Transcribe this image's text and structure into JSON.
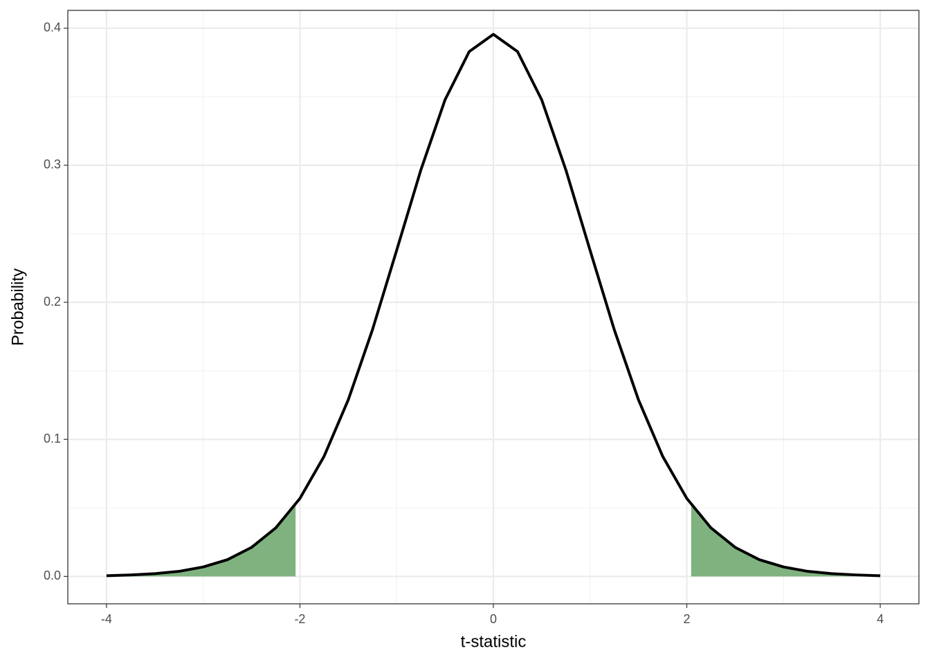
{
  "chart_data": {
    "type": "line",
    "x_label": "t-statistic",
    "y_label": "Probability",
    "x": [
      -4,
      -3.75,
      -3.5,
      -3.25,
      -3,
      -2.75,
      -2.5,
      -2.25,
      -2,
      -1.75,
      -1.5,
      -1.25,
      -1,
      -0.75,
      -0.5,
      -0.25,
      0,
      0.25,
      0.5,
      0.75,
      1,
      1.25,
      1.5,
      1.75,
      2,
      2.25,
      2.5,
      2.75,
      3,
      3.25,
      3.5,
      3.75,
      4
    ],
    "series": [
      {
        "color": "#000000",
        "values": [
          0.0005,
          0.0011,
          0.002,
          0.0037,
          0.0069,
          0.0122,
          0.0212,
          0.0354,
          0.0569,
          0.0877,
          0.1289,
          0.18,
          0.2379,
          0.2965,
          0.3477,
          0.3829,
          0.3955,
          0.3829,
          0.3477,
          0.2965,
          0.2379,
          0.18,
          0.1289,
          0.0877,
          0.0569,
          0.0354,
          0.0212,
          0.0122,
          0.0069,
          0.0037,
          0.002,
          0.0011,
          0.0005
        ]
      }
    ],
    "shaded": [
      {
        "color": "#7fb27f",
        "x": [
          -4,
          -3.75,
          -3.5,
          -3.25,
          -3,
          -2.75,
          -2.5,
          -2.25,
          -2.045
        ],
        "values": [
          0.0005,
          0.0011,
          0.002,
          0.0037,
          0.0069,
          0.0122,
          0.0212,
          0.0354,
          0.0524
        ]
      },
      {
        "color": "#7fb27f",
        "x": [
          2.045,
          2.25,
          2.5,
          2.75,
          3,
          3.25,
          3.5,
          3.75,
          4
        ],
        "values": [
          0.0524,
          0.0354,
          0.0212,
          0.0122,
          0.0069,
          0.0037,
          0.002,
          0.0011,
          0.0005
        ]
      }
    ],
    "xlim": [
      -4.4,
      4.4
    ],
    "ylim": [
      -0.02,
      0.413
    ],
    "xticks": [
      -4,
      -2,
      0,
      2,
      4
    ],
    "yticks": [
      {
        "value": 0,
        "label": "0.0"
      },
      0.1,
      0.2,
      0.3,
      0.4
    ],
    "minor_xticks": [
      -3,
      -1,
      1,
      3
    ],
    "minor_yticks": [
      0.05,
      0.15,
      0.25,
      0.35
    ],
    "grid": true
  }
}
